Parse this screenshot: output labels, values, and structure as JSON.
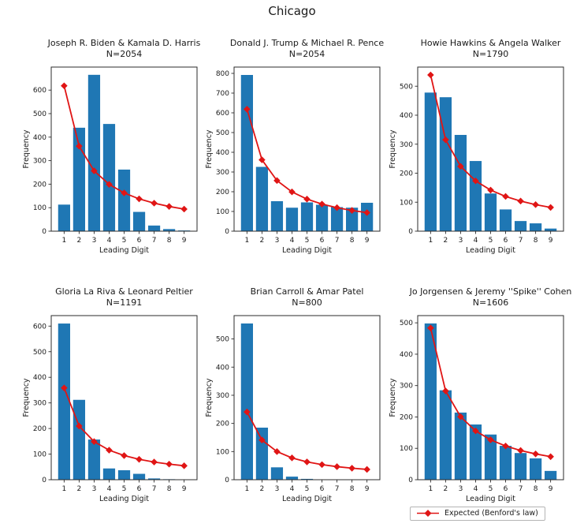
{
  "figure": {
    "suptitle": "Chicago"
  },
  "legend": {
    "label": "Expected (Benford's law)"
  },
  "colors": {
    "bar": "#1f77b4",
    "line": "#e01515",
    "text": "#1a1a1a",
    "spine": "#2b2b2b"
  },
  "chart_data": [
    {
      "type": "bar",
      "title": "Joseph R. Biden & Kamala D. Harris",
      "subtitle": "N=2054",
      "n": 2054,
      "categories": [
        1,
        2,
        3,
        4,
        5,
        6,
        7,
        8,
        9
      ],
      "series": [
        {
          "name": "Observed frequency",
          "type": "bar",
          "values": [
            113,
            440,
            665,
            456,
            262,
            82,
            24,
            9,
            3
          ]
        },
        {
          "name": "Expected (Benford's law)",
          "type": "line",
          "values": [
            618.3,
            361.7,
            256.6,
            199.1,
            162.6,
            137.5,
            119.1,
            105.1,
            94.0
          ]
        }
      ],
      "xlabel": "Leading Digit",
      "ylabel": "Frequency",
      "ylim": [
        0,
        698
      ],
      "yticks": [
        0,
        100,
        200,
        300,
        400,
        500,
        600
      ],
      "grid": false
    },
    {
      "type": "bar",
      "title": "Donald J. Trump & Michael R. Pence",
      "subtitle": "N=2054",
      "n": 2054,
      "categories": [
        1,
        2,
        3,
        4,
        5,
        6,
        7,
        8,
        9
      ],
      "series": [
        {
          "name": "Observed frequency",
          "type": "bar",
          "values": [
            792,
            326,
            152,
            119,
            146,
            134,
            122,
            119,
            144
          ]
        },
        {
          "name": "Expected (Benford's law)",
          "type": "line",
          "values": [
            618.3,
            361.7,
            256.6,
            199.1,
            162.6,
            137.5,
            119.1,
            105.1,
            94.0
          ]
        }
      ],
      "xlabel": "Leading Digit",
      "ylabel": "Frequency",
      "ylim": [
        0,
        832
      ],
      "yticks": [
        0,
        100,
        200,
        300,
        400,
        500,
        600,
        700,
        800
      ],
      "grid": false
    },
    {
      "type": "bar",
      "title": "Howie Hawkins & Angela Walker",
      "subtitle": "N=1790",
      "n": 1790,
      "categories": [
        1,
        2,
        3,
        4,
        5,
        6,
        7,
        8,
        9
      ],
      "series": [
        {
          "name": "Observed frequency",
          "type": "bar",
          "values": [
            478,
            462,
            332,
            242,
            130,
            75,
            35,
            27,
            9
          ]
        },
        {
          "name": "Expected (Benford's law)",
          "type": "line",
          "values": [
            538.8,
            315.2,
            223.6,
            173.5,
            141.7,
            119.8,
            103.8,
            91.6,
            81.9
          ]
        }
      ],
      "xlabel": "Leading Digit",
      "ylabel": "Frequency",
      "ylim": [
        0,
        566
      ],
      "yticks": [
        0,
        100,
        200,
        300,
        400,
        500
      ],
      "grid": false
    },
    {
      "type": "bar",
      "title": "Gloria La Riva & Leonard Peltier",
      "subtitle": "N=1191",
      "n": 1191,
      "categories": [
        1,
        2,
        3,
        4,
        5,
        6,
        7,
        8,
        9
      ],
      "series": [
        {
          "name": "Observed frequency",
          "type": "bar",
          "values": [
            610,
            312,
            157,
            44,
            37,
            23,
            5,
            2,
            1
          ]
        },
        {
          "name": "Expected (Benford's law)",
          "type": "line",
          "values": [
            358.5,
            209.7,
            148.8,
            115.4,
            94.3,
            79.7,
            69.1,
            60.9,
            54.5
          ]
        }
      ],
      "xlabel": "Leading Digit",
      "ylabel": "Frequency",
      "ylim": [
        0,
        641
      ],
      "yticks": [
        0,
        100,
        200,
        300,
        400,
        500,
        600
      ],
      "grid": false
    },
    {
      "type": "bar",
      "title": "Brian Carroll & Amar Patel",
      "subtitle": "N=800",
      "n": 800,
      "categories": [
        1,
        2,
        3,
        4,
        5,
        6,
        7,
        8,
        9
      ],
      "series": [
        {
          "name": "Observed frequency",
          "type": "bar",
          "values": [
            555,
            185,
            44,
            11,
            3,
            1,
            1,
            0,
            0
          ]
        },
        {
          "name": "Expected (Benford's law)",
          "type": "line",
          "values": [
            240.8,
            140.9,
            100.0,
            77.5,
            63.3,
            53.6,
            46.4,
            40.9,
            36.6
          ]
        }
      ],
      "xlabel": "Leading Digit",
      "ylabel": "Frequency",
      "ylim": [
        0,
        583
      ],
      "yticks": [
        0,
        100,
        200,
        300,
        400,
        500
      ],
      "grid": false
    },
    {
      "type": "bar",
      "title": "Jo Jorgensen & Jeremy ''Spike'' Cohen",
      "subtitle": "N=1606",
      "n": 1606,
      "categories": [
        1,
        2,
        3,
        4,
        5,
        6,
        7,
        8,
        9
      ],
      "series": [
        {
          "name": "Observed frequency",
          "type": "bar",
          "values": [
            498,
            285,
            214,
            176,
            144,
            108,
            85,
            68,
            28
          ]
        },
        {
          "name": "Expected (Benford's law)",
          "type": "line",
          "values": [
            483.5,
            282.8,
            200.7,
            155.6,
            127.2,
            107.5,
            93.1,
            82.2,
            73.5
          ]
        }
      ],
      "xlabel": "Leading Digit",
      "ylabel": "Frequency",
      "ylim": [
        0,
        523
      ],
      "yticks": [
        0,
        100,
        200,
        300,
        400,
        500
      ],
      "grid": false
    }
  ]
}
